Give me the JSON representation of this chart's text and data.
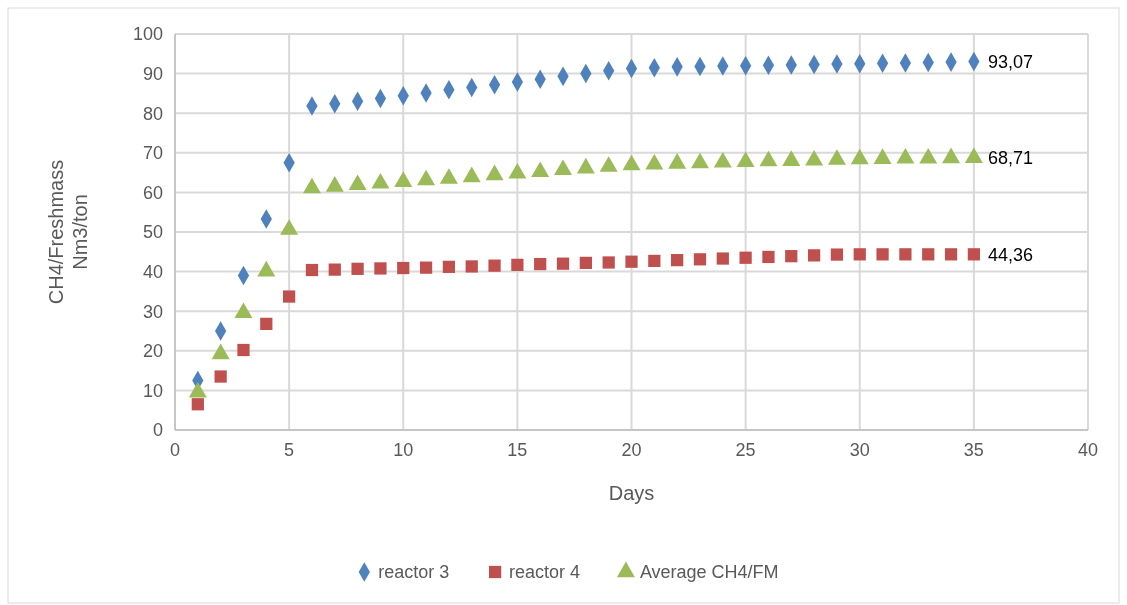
{
  "chart_data": {
    "type": "scatter",
    "xlabel": "Days",
    "ylabel": "CH4/Freshmass Nm3/ton",
    "xlim": [
      0,
      40
    ],
    "xticks": [
      0,
      5,
      10,
      15,
      20,
      25,
      30,
      35,
      40
    ],
    "ylim": [
      0,
      100
    ],
    "yticks": [
      0,
      10,
      20,
      30,
      40,
      50,
      60,
      70,
      80,
      90,
      100
    ],
    "grid": true,
    "legend": "bottom",
    "x": [
      1,
      2,
      3,
      4,
      5,
      6,
      7,
      8,
      9,
      10,
      11,
      12,
      13,
      14,
      15,
      16,
      17,
      18,
      19,
      20,
      21,
      22,
      23,
      24,
      25,
      26,
      27,
      28,
      29,
      30,
      31,
      32,
      33,
      34,
      35
    ],
    "series": [
      {
        "name": "reactor 3",
        "color": "#4f81bd",
        "marker": "diamond",
        "values": [
          12.5,
          25,
          39,
          53.3,
          67.5,
          81.8,
          82.4,
          83,
          83.7,
          84.4,
          85.1,
          85.9,
          86.5,
          87.2,
          87.9,
          88.6,
          89.3,
          90,
          90.7,
          91.3,
          91.5,
          91.7,
          91.8,
          91.9,
          92,
          92.1,
          92.2,
          92.3,
          92.4,
          92.5,
          92.6,
          92.7,
          92.8,
          92.9,
          93.07
        ],
        "value_labels": [
          null,
          null,
          null,
          null,
          null,
          null,
          null,
          null,
          null,
          null,
          null,
          null,
          null,
          null,
          null,
          null,
          null,
          null,
          null,
          null,
          null,
          null,
          null,
          null,
          null,
          null,
          null,
          null,
          null,
          null,
          null,
          null,
          null,
          null,
          "93,07"
        ]
      },
      {
        "name": "reactor 4",
        "color": "#c0504d",
        "marker": "square",
        "values": [
          6.5,
          13.5,
          20.2,
          26.8,
          33.7,
          40.4,
          40.5,
          40.7,
          40.8,
          40.9,
          41,
          41.2,
          41.3,
          41.5,
          41.7,
          41.9,
          42,
          42.2,
          42.3,
          42.5,
          42.7,
          42.9,
          43.1,
          43.3,
          43.5,
          43.7,
          43.9,
          44.1,
          44.3,
          44.36,
          44.36,
          44.36,
          44.36,
          44.36,
          44.36
        ],
        "value_labels": [
          null,
          null,
          null,
          null,
          null,
          null,
          null,
          null,
          null,
          null,
          null,
          null,
          null,
          null,
          null,
          null,
          null,
          null,
          null,
          null,
          null,
          null,
          null,
          null,
          null,
          null,
          null,
          null,
          null,
          null,
          null,
          null,
          null,
          null,
          "44,36"
        ]
      },
      {
        "name": "Average CH4/FM",
        "color": "#9bbb59",
        "marker": "triangle",
        "values": [
          9.5,
          19.2,
          29.6,
          40.1,
          50.6,
          61.1,
          61.5,
          61.9,
          62.3,
          62.7,
          63.1,
          63.5,
          63.9,
          64.4,
          64.8,
          65.2,
          65.7,
          66.1,
          66.5,
          66.9,
          67.1,
          67.3,
          67.4,
          67.6,
          67.7,
          67.9,
          68,
          68.1,
          68.3,
          68.4,
          68.5,
          68.6,
          68.6,
          68.7,
          68.71
        ],
        "value_labels": [
          null,
          null,
          null,
          null,
          null,
          null,
          null,
          null,
          null,
          null,
          null,
          null,
          null,
          null,
          null,
          null,
          null,
          null,
          null,
          null,
          null,
          null,
          null,
          null,
          null,
          null,
          null,
          null,
          null,
          null,
          null,
          null,
          null,
          null,
          "68,71"
        ]
      }
    ]
  }
}
